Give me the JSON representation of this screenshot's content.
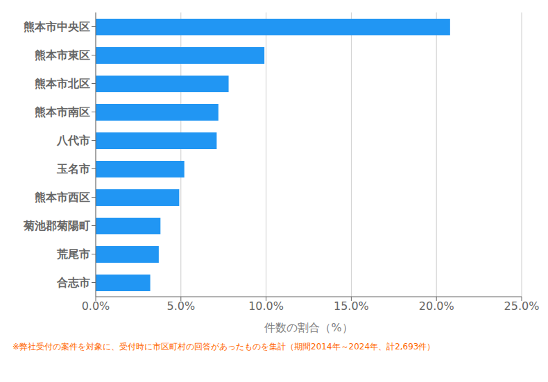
{
  "chart_data": {
    "type": "bar",
    "orientation": "horizontal",
    "categories": [
      "熊本市中央区",
      "熊本市東区",
      "熊本市北区",
      "熊本市南区",
      "八代市",
      "玉名市",
      "熊本市西区",
      "菊池郡菊陽町",
      "荒尾市",
      "合志市"
    ],
    "values": [
      20.8,
      9.9,
      7.8,
      7.2,
      7.1,
      5.2,
      4.9,
      3.8,
      3.7,
      3.2
    ],
    "color": "#2196F3",
    "xlabel": "件数の割合（%）",
    "xlim": [
      0,
      25
    ],
    "xticks": [
      {
        "value": 0,
        "label": "0.0%"
      },
      {
        "value": 5,
        "label": "5.0%"
      },
      {
        "value": 10,
        "label": "10.0%"
      },
      {
        "value": 15,
        "label": "15.0%"
      },
      {
        "value": 20,
        "label": "20.0%"
      },
      {
        "value": 25,
        "label": "25.0%"
      }
    ],
    "grid": true,
    "annotations": [
      {
        "text": "※弊社受付の案件を対象に、受付時に市区町村の回答があったものを集計（期間2014年～2024年、計2,693件）",
        "color": "#FF6600"
      }
    ]
  }
}
